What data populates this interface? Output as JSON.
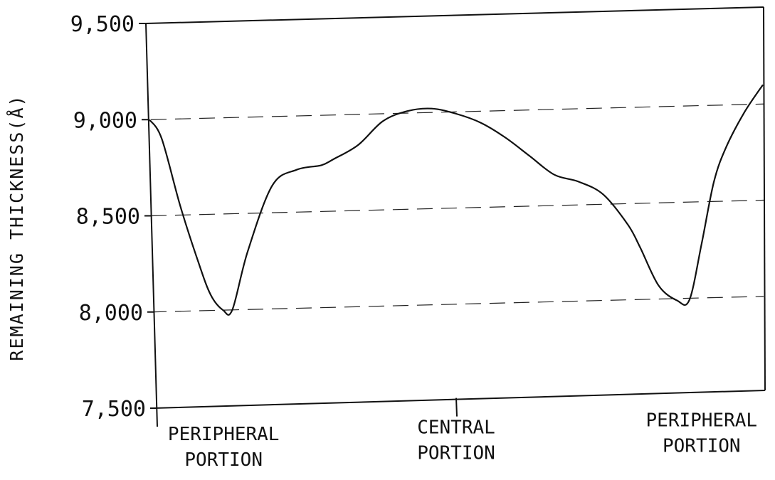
{
  "chart_data": {
    "type": "line",
    "xlabel": "",
    "ylabel": "REMAINING THICKNESS(Å)",
    "ylim": [
      7500,
      9500
    ],
    "yticks": [
      {
        "value": 9500,
        "label": "9,500"
      },
      {
        "value": 9000,
        "label": "9,000"
      },
      {
        "value": 8500,
        "label": "8,500"
      },
      {
        "value": 8000,
        "label": "8,000"
      },
      {
        "value": 7500,
        "label": "7,500"
      }
    ],
    "grid": {
      "horizontal": true,
      "values": [
        9000,
        8500,
        8000
      ],
      "style": "dashed"
    },
    "categories": [
      {
        "position": 0.1,
        "line1": "PERIPHERAL",
        "line2": "PORTION"
      },
      {
        "position": 0.5,
        "line1": "CENTRAL",
        "line2": "PORTION"
      },
      {
        "position": 0.9,
        "line1": "PERIPHERAL",
        "line2": "PORTION"
      }
    ],
    "center_tick": 0.5,
    "series": [
      {
        "x": [
          0.0,
          0.02,
          0.05,
          0.08,
          0.1,
          0.12,
          0.135,
          0.16,
          0.2,
          0.24,
          0.28,
          0.3,
          0.34,
          0.38,
          0.42,
          0.46,
          0.5,
          0.54,
          0.58,
          0.62,
          0.66,
          0.7,
          0.74,
          0.78,
          0.8,
          0.83,
          0.86,
          0.88,
          0.9,
          0.92,
          0.94,
          0.97,
          1.0
        ],
        "y": [
          9000,
          8900,
          8550,
          8250,
          8080,
          8000,
          8000,
          8300,
          8640,
          8720,
          8740,
          8770,
          8840,
          8960,
          9010,
          9020,
          8990,
          8940,
          8860,
          8760,
          8660,
          8620,
          8550,
          8390,
          8270,
          8070,
          7990,
          7990,
          8280,
          8600,
          8780,
          8960,
          9100
        ]
      }
    ]
  }
}
